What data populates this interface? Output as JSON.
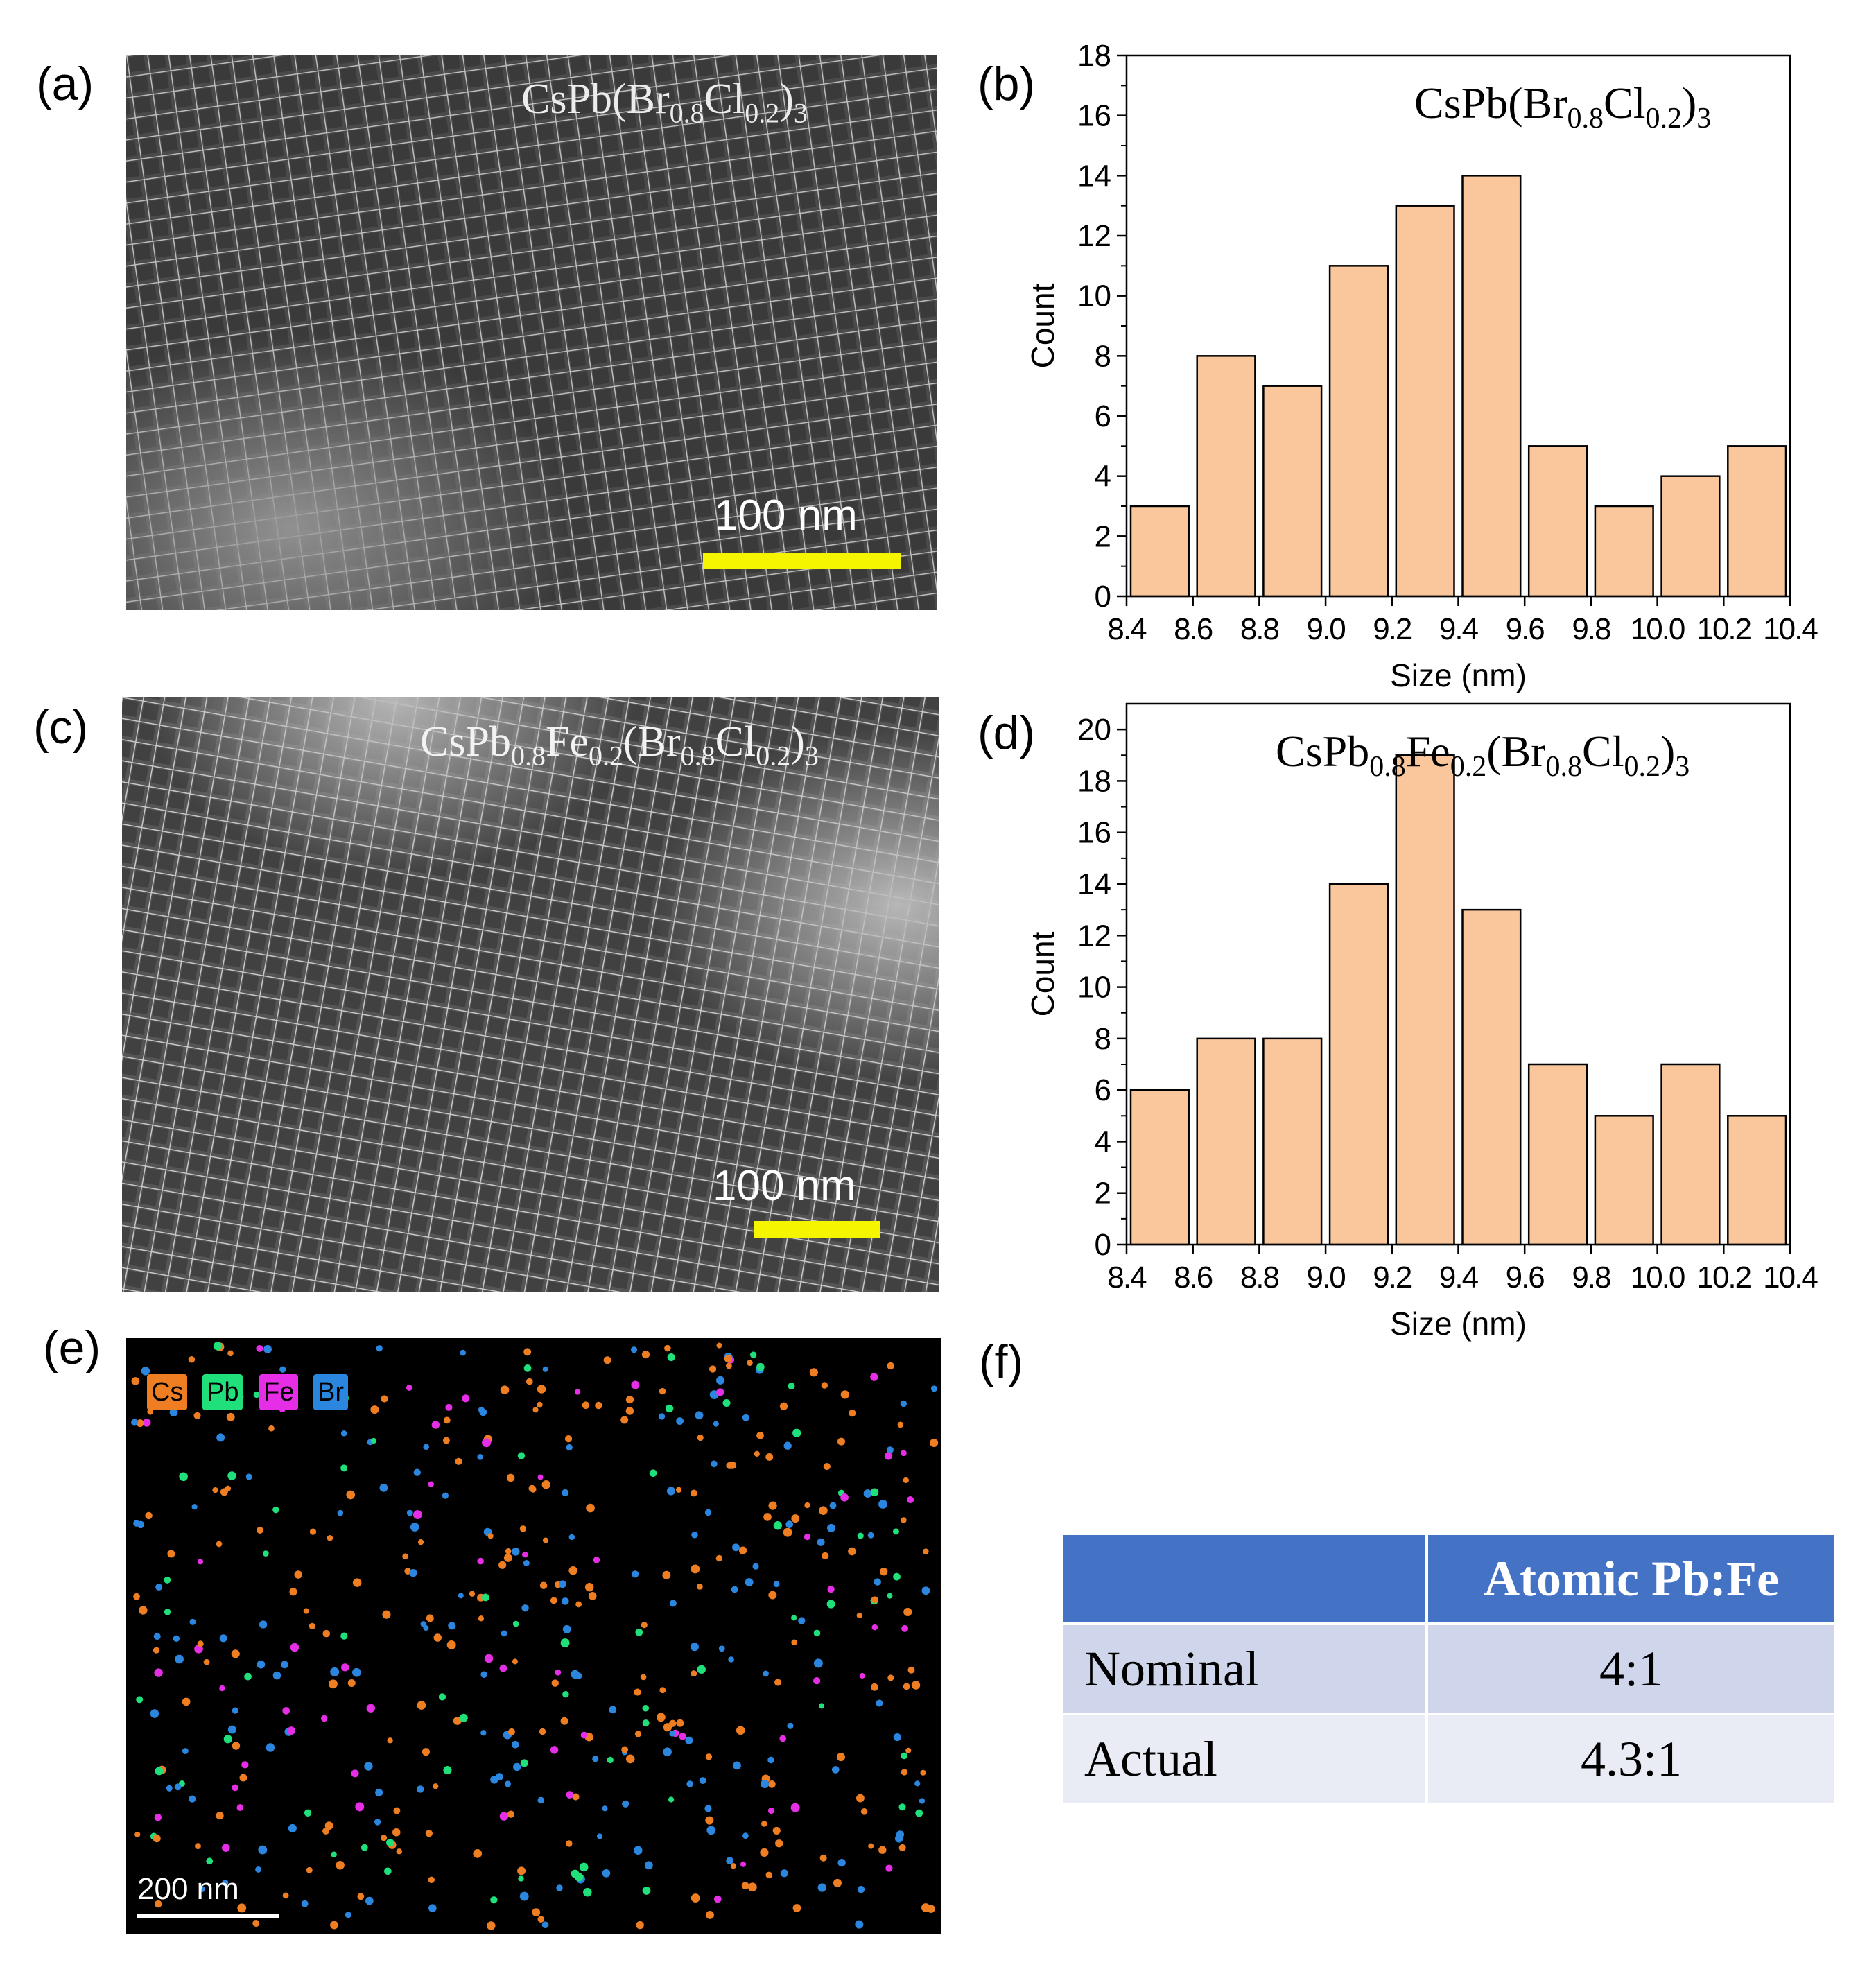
{
  "panels": {
    "a": "(a)",
    "b": "(b)",
    "c": "(c)",
    "d": "(d)",
    "e": "(e)",
    "f": "(f)"
  },
  "tem_a": {
    "label_parts": [
      "CsPb(Br",
      "0.8",
      "Cl",
      "0.2",
      ")",
      "3"
    ],
    "scale_text": "100 nm"
  },
  "tem_c": {
    "label_parts": [
      "CsPb",
      "0.8",
      "Fe",
      "0.2",
      "(Br",
      "0.8",
      "Cl",
      "0.2",
      ")",
      "3"
    ],
    "scale_text": "100 nm"
  },
  "eds": {
    "legend": [
      {
        "label": "Cs",
        "color": "#ef7d22"
      },
      {
        "label": "Pb",
        "color": "#1fe07a"
      },
      {
        "label": "Fe",
        "color": "#e62ee6"
      },
      {
        "label": "Br",
        "color": "#2b86e0"
      }
    ],
    "scale_text": "200 nm"
  },
  "chart_data": [
    {
      "type": "bar",
      "panel": "b",
      "title_parts": [
        "CsPb(Br",
        "0.8",
        "Cl",
        "0.2",
        ")",
        "3"
      ],
      "xlabel": "Size (nm)",
      "ylabel": "Count",
      "bin_edges": [
        8.4,
        8.6,
        8.8,
        9.0,
        9.2,
        9.4,
        9.6,
        9.8,
        10.0,
        10.2,
        10.4
      ],
      "values": [
        3,
        8,
        7,
        11,
        13,
        14,
        5,
        3,
        4,
        5
      ],
      "xlim": [
        8.4,
        10.4
      ],
      "ylim": [
        0,
        18
      ],
      "yticks": [
        0,
        2,
        4,
        6,
        8,
        10,
        12,
        14,
        16,
        18
      ],
      "xtick_labels": [
        "8.4",
        "8.6",
        "8.8",
        "9.0",
        "9.2",
        "9.4",
        "9.6",
        "9.8",
        "10.0",
        "10.2",
        "10.4"
      ],
      "bar_color": "#f9c79b"
    },
    {
      "type": "bar",
      "panel": "d",
      "title_parts": [
        "CsPb",
        "0.8",
        "Fe",
        "0.2",
        "(Br",
        "0.8",
        "Cl",
        "0.2",
        ")",
        "3"
      ],
      "xlabel": "Size (nm)",
      "ylabel": "Count",
      "bin_edges": [
        8.4,
        8.6,
        8.8,
        9.0,
        9.2,
        9.4,
        9.6,
        9.8,
        10.0,
        10.2,
        10.4
      ],
      "values": [
        6,
        8,
        8,
        14,
        19,
        13,
        7,
        5,
        7,
        5
      ],
      "xlim": [
        8.4,
        10.4
      ],
      "ylim": [
        0,
        21
      ],
      "yticks": [
        0,
        2,
        4,
        6,
        8,
        10,
        12,
        14,
        16,
        18,
        20
      ],
      "xtick_labels": [
        "8.4",
        "8.6",
        "8.8",
        "9.0",
        "9.2",
        "9.4",
        "9.6",
        "9.8",
        "10.0",
        "10.2",
        "10.4"
      ],
      "bar_color": "#f9c79b"
    }
  ],
  "table": {
    "header": [
      "",
      "Atomic Pb:Fe"
    ],
    "rows": [
      {
        "label": "Nominal",
        "value": "4:1"
      },
      {
        "label": "Actual",
        "value": "4.3:1"
      }
    ]
  }
}
